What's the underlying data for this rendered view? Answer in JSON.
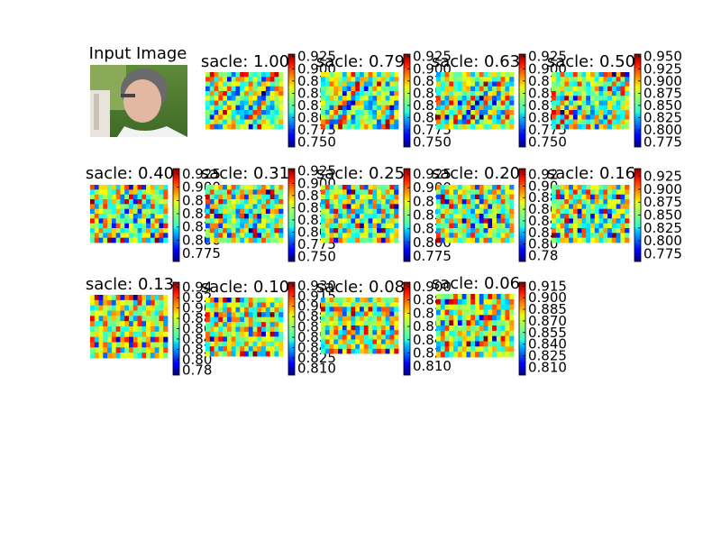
{
  "input_panel": {
    "title": "Input Image"
  },
  "chart_data": [
    {
      "type": "heatmap",
      "title": "sacle: 1.00",
      "colorbar_ticks": [
        "0.925",
        "0.900",
        "0.875",
        "0.850",
        "0.825",
        "0.800",
        "0.775",
        "0.750"
      ],
      "value_range": [
        0.74,
        0.93
      ]
    },
    {
      "type": "heatmap",
      "title": "sacle: 0.79",
      "colorbar_ticks": [
        "0.925",
        "0.900",
        "0.875",
        "0.850",
        "0.825",
        "0.800",
        "0.775",
        "0.750"
      ],
      "value_range": [
        0.74,
        0.93
      ]
    },
    {
      "type": "heatmap",
      "title": "sacle: 0.63",
      "colorbar_ticks": [
        "0.925",
        "0.900",
        "0.875",
        "0.850",
        "0.825",
        "0.800",
        "0.775",
        "0.750"
      ],
      "value_range": [
        0.74,
        0.93
      ]
    },
    {
      "type": "heatmap",
      "title": "sacle: 0.50",
      "colorbar_ticks": [
        "0.950",
        "0.925",
        "0.900",
        "0.875",
        "0.850",
        "0.825",
        "0.800",
        "0.775"
      ],
      "value_range": [
        0.765,
        0.955
      ]
    },
    {
      "type": "heatmap",
      "title": "sacle: 0.40",
      "colorbar_ticks": [
        "0.925",
        "0.900",
        "0.875",
        "0.850",
        "0.825",
        "0.800",
        "0.775"
      ],
      "value_range": [
        0.76,
        0.935
      ]
    },
    {
      "type": "heatmap",
      "title": "sacle: 0.31",
      "colorbar_ticks": [
        "0.925",
        "0.900",
        "0.875",
        "0.850",
        "0.825",
        "0.800",
        "0.775",
        "0.750"
      ],
      "value_range": [
        0.74,
        0.93
      ]
    },
    {
      "type": "heatmap",
      "title": "sacle: 0.25",
      "colorbar_ticks": [
        "0.925",
        "0.900",
        "0.875",
        "0.850",
        "0.825",
        "0.800",
        "0.775"
      ],
      "value_range": [
        0.765,
        0.935
      ]
    },
    {
      "type": "heatmap",
      "title": "sacle: 0.20",
      "colorbar_ticks": [
        "0.92",
        "0.90",
        "0.88",
        "0.86",
        "0.84",
        "0.82",
        "0.80",
        "0.78"
      ],
      "value_range": [
        0.77,
        0.93
      ]
    },
    {
      "type": "heatmap",
      "title": "sacle: 0.16",
      "colorbar_ticks": [
        "0.925",
        "0.900",
        "0.875",
        "0.850",
        "0.825",
        "0.800",
        "0.775"
      ],
      "value_range": [
        0.76,
        0.94
      ]
    },
    {
      "type": "heatmap",
      "title": "sacle: 0.13",
      "colorbar_ticks": [
        "0.94",
        "0.92",
        "0.90",
        "0.88",
        "0.86",
        "0.84",
        "0.82",
        "0.80",
        "0.78"
      ],
      "value_range": [
        0.77,
        0.95
      ]
    },
    {
      "type": "heatmap",
      "title": "sacle: 0.10",
      "colorbar_ticks": [
        "0.930",
        "0.915",
        "0.900",
        "0.885",
        "0.870",
        "0.855",
        "0.840",
        "0.825",
        "0.810"
      ],
      "value_range": [
        0.8,
        0.935
      ]
    },
    {
      "type": "heatmap",
      "title": "sacle: 0.08",
      "colorbar_ticks": [
        "0.900",
        "0.885",
        "0.870",
        "0.855",
        "0.840",
        "0.825",
        "0.810"
      ],
      "value_range": [
        0.8,
        0.905
      ]
    },
    {
      "type": "heatmap",
      "title": "sacle: 0.06",
      "colorbar_ticks": [
        "0.915",
        "0.900",
        "0.885",
        "0.870",
        "0.855",
        "0.840",
        "0.825",
        "0.810"
      ],
      "value_range": [
        0.8,
        0.92
      ]
    }
  ]
}
